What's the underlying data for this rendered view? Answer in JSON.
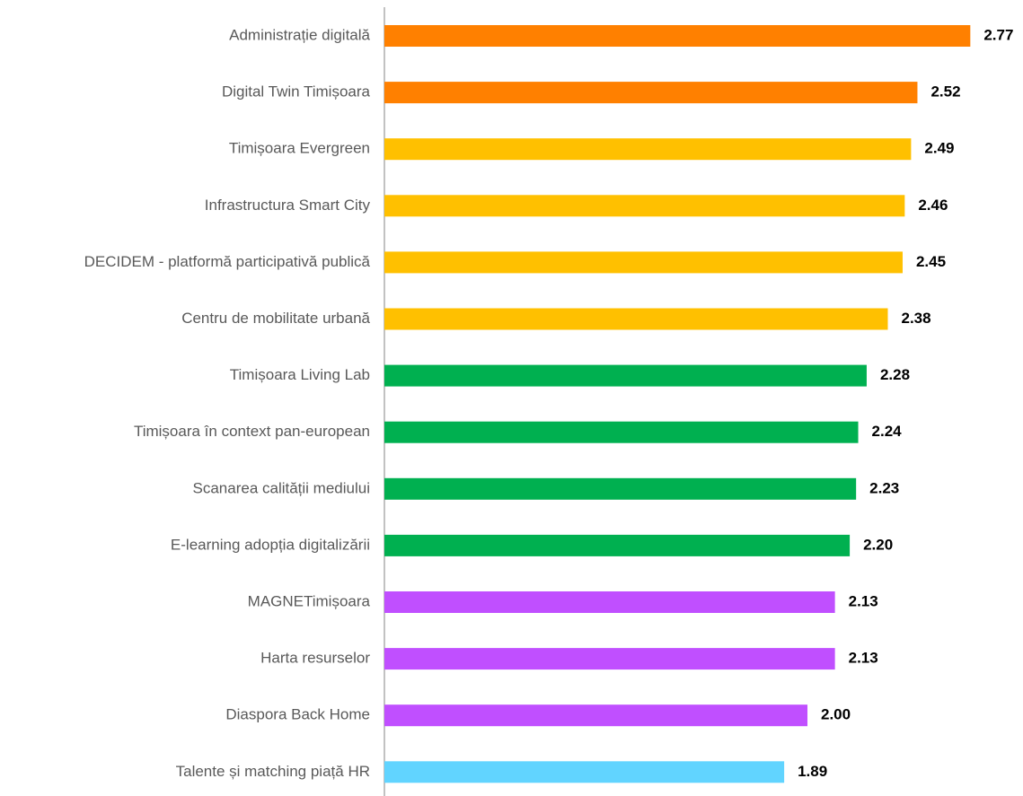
{
  "chart_data": {
    "type": "bar",
    "orientation": "horizontal",
    "categories": [
      "Administrație digitală",
      "Digital Twin Timișoara",
      "Timișoara Evergreen",
      "Infrastructura Smart City",
      "DECIDEM - platformă participativă publică",
      "Centru de mobilitate urbană",
      "Timișoara Living Lab",
      "Timișoara în context pan-european",
      "Scanarea calității mediului",
      "E-learning adopția digitalizării",
      "MAGNETimișoara",
      "Harta resurselor",
      "Diaspora Back Home",
      "Talente și matching piață HR"
    ],
    "values": [
      2.77,
      2.52,
      2.49,
      2.46,
      2.45,
      2.38,
      2.28,
      2.24,
      2.23,
      2.2,
      2.13,
      2.13,
      2.0,
      1.89
    ],
    "value_labels": [
      "2.77",
      "2.52",
      "2.49",
      "2.46",
      "2.45",
      "2.38",
      "2.28",
      "2.24",
      "2.23",
      "2.20",
      "2.13",
      "2.13",
      "2.00",
      "1.89"
    ],
    "colors": [
      "#ff8000",
      "#ff8000",
      "#ffc000",
      "#ffc000",
      "#ffc000",
      "#ffc000",
      "#00b050",
      "#00b050",
      "#00b050",
      "#00b050",
      "#c04fff",
      "#c04fff",
      "#c04fff",
      "#61d4ff"
    ]
  }
}
